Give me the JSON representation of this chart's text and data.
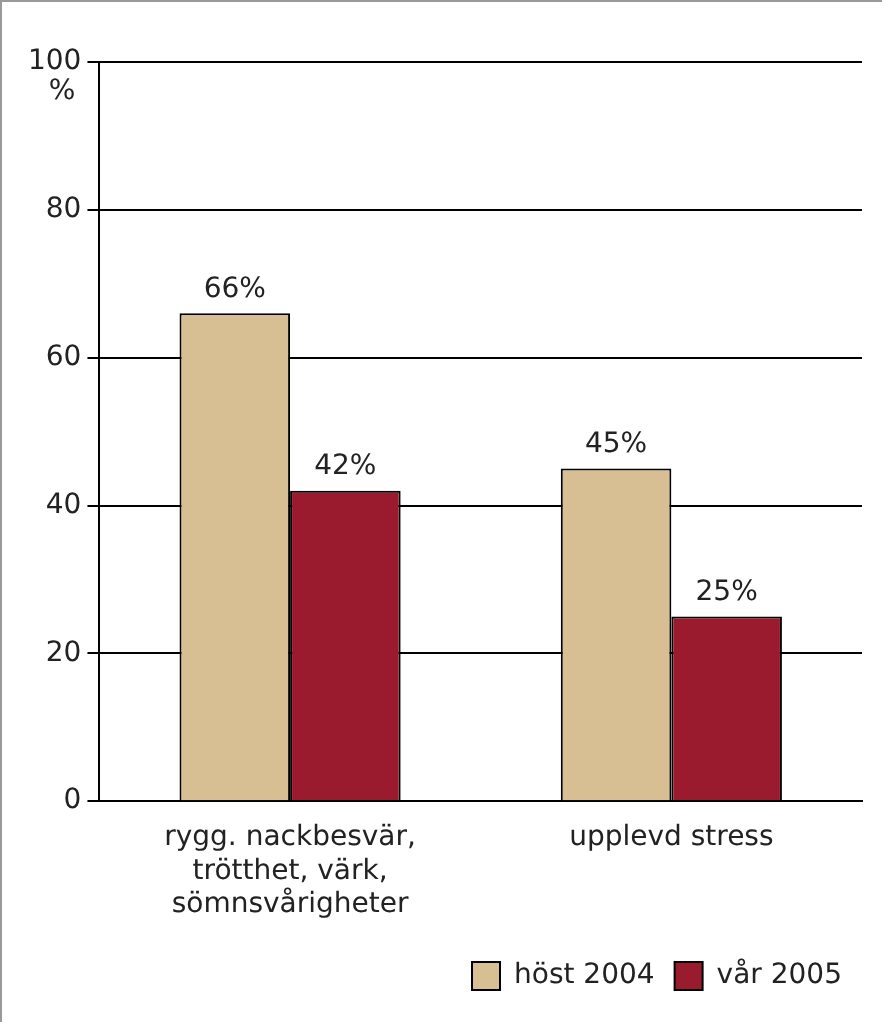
{
  "chart_data": {
    "type": "bar",
    "ylabel": "%",
    "categories": [
      "rygg. nackbesvär,\ntrötthet, värk,\nsömnsvårigheter",
      "upplevd stress"
    ],
    "series": [
      {
        "name": "höst 2004",
        "color": "#d8bf93",
        "values": [
          66,
          45
        ],
        "value_labels": [
          "66%",
          "45%"
        ]
      },
      {
        "name": "vår 2005",
        "color": "#9a1a2e",
        "values": [
          42,
          25
        ],
        "value_labels": [
          "42%",
          "25%"
        ]
      }
    ],
    "ylim": [
      0,
      100
    ],
    "yticks": [
      0,
      20,
      40,
      60,
      80,
      100
    ],
    "grid": "y",
    "legend": "bottom right"
  }
}
